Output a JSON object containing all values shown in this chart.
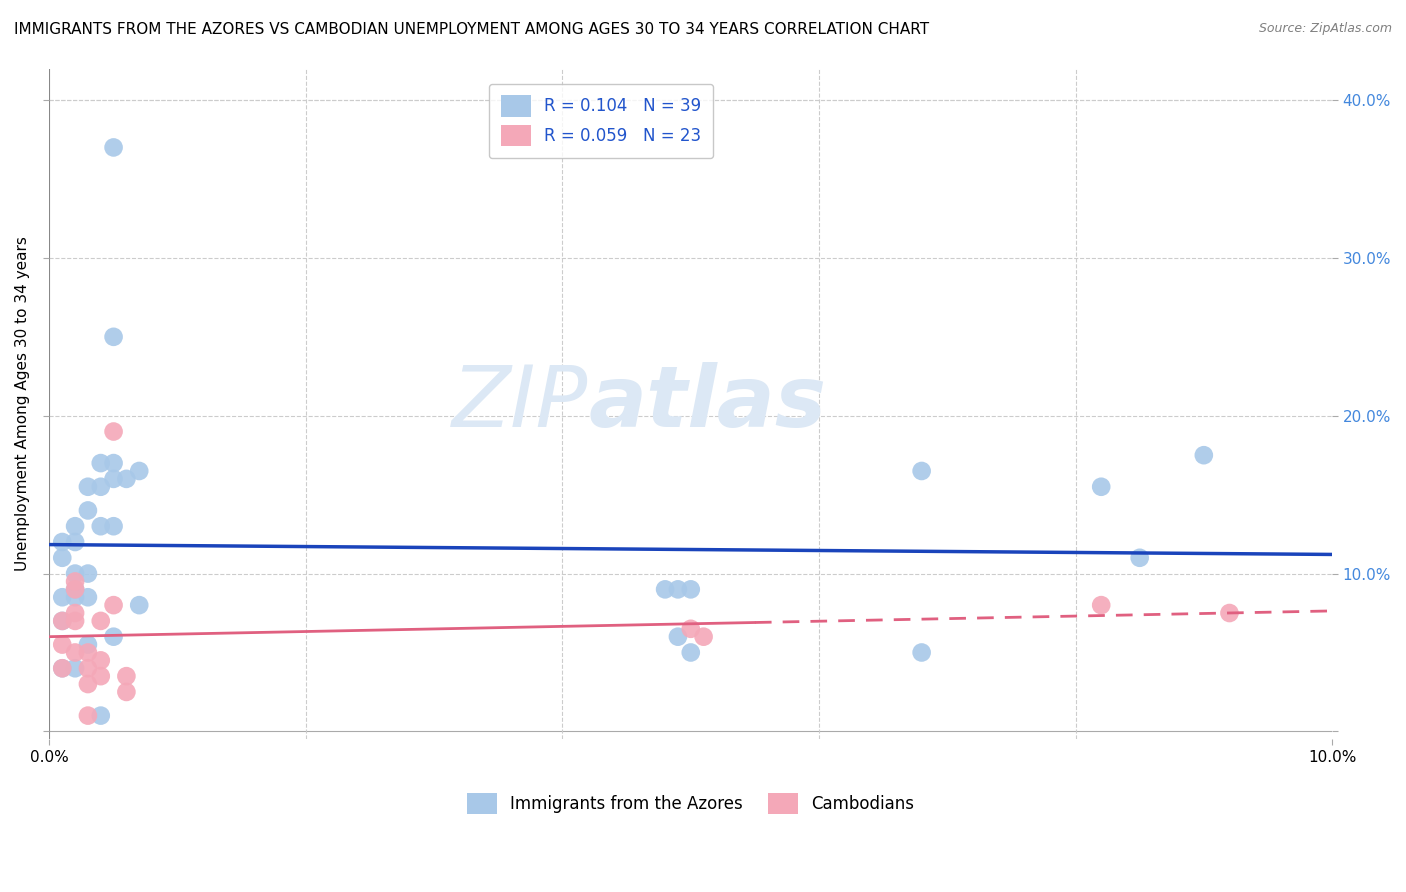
{
  "title": "IMMIGRANTS FROM THE AZORES VS CAMBODIAN UNEMPLOYMENT AMONG AGES 30 TO 34 YEARS CORRELATION CHART",
  "source": "Source: ZipAtlas.com",
  "ylabel": "Unemployment Among Ages 30 to 34 years",
  "y_tick_values": [
    0,
    0.1,
    0.2,
    0.3,
    0.4
  ],
  "xlim": [
    0,
    0.1
  ],
  "ylim": [
    -0.005,
    0.42
  ],
  "series1_color": "#a8c8e8",
  "series2_color": "#f4a8b8",
  "line1_color": "#1a44bb",
  "line2_color": "#e06080",
  "watermark_zip": "ZIP",
  "watermark_atlas": "atlas",
  "label1": "Immigrants from the Azores",
  "label2": "Cambodians",
  "series1_x": [
    0.001,
    0.001,
    0.001,
    0.001,
    0.001,
    0.002,
    0.002,
    0.002,
    0.002,
    0.002,
    0.002,
    0.003,
    0.003,
    0.003,
    0.003,
    0.003,
    0.004,
    0.004,
    0.004,
    0.004,
    0.005,
    0.005,
    0.005,
    0.005,
    0.005,
    0.005,
    0.006,
    0.007,
    0.007,
    0.048,
    0.049,
    0.049,
    0.05,
    0.05,
    0.068,
    0.068,
    0.082,
    0.085,
    0.09
  ],
  "series1_y": [
    0.12,
    0.11,
    0.085,
    0.07,
    0.04,
    0.13,
    0.12,
    0.1,
    0.09,
    0.085,
    0.04,
    0.155,
    0.14,
    0.1,
    0.085,
    0.055,
    0.17,
    0.155,
    0.13,
    0.01,
    0.37,
    0.25,
    0.17,
    0.16,
    0.13,
    0.06,
    0.16,
    0.165,
    0.08,
    0.09,
    0.09,
    0.06,
    0.09,
    0.05,
    0.165,
    0.05,
    0.155,
    0.11,
    0.175
  ],
  "series2_x": [
    0.001,
    0.001,
    0.001,
    0.002,
    0.002,
    0.002,
    0.002,
    0.002,
    0.003,
    0.003,
    0.003,
    0.003,
    0.004,
    0.004,
    0.004,
    0.005,
    0.005,
    0.006,
    0.006,
    0.05,
    0.051,
    0.082,
    0.092
  ],
  "series2_y": [
    0.04,
    0.055,
    0.07,
    0.05,
    0.075,
    0.09,
    0.095,
    0.07,
    0.05,
    0.04,
    0.03,
    0.01,
    0.07,
    0.045,
    0.035,
    0.19,
    0.08,
    0.035,
    0.025,
    0.065,
    0.06,
    0.08,
    0.075
  ],
  "grid_color": "#cccccc",
  "background_color": "#ffffff",
  "title_fontsize": 11,
  "axis_label_fontsize": 11,
  "tick_fontsize": 11,
  "watermark_fontsize_zip": 62,
  "watermark_fontsize_atlas": 62,
  "watermark_color": "#dce8f5",
  "source_fontsize": 9,
  "legend_fontsize": 12,
  "legend_R1": "R = 0.104",
  "legend_N1": "N = 39",
  "legend_R2": "R = 0.059",
  "legend_N2": "N = 23"
}
